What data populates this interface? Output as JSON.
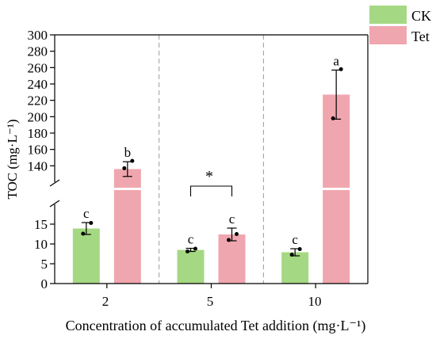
{
  "chart_data": {
    "type": "bar",
    "xlabel": "Concentration of accumulated Tet addition (mg·L⁻¹)",
    "ylabel": "TOC (mg·L⁻¹)",
    "categories": [
      "2",
      "5",
      "10"
    ],
    "axis_break": {
      "lower_range": [
        0,
        20
      ],
      "upper_range": [
        120,
        300
      ]
    },
    "lower_ticks": [
      "0",
      "5",
      "10",
      "15"
    ],
    "upper_ticks": [
      "140",
      "160",
      "180",
      "200",
      "220",
      "240",
      "260",
      "280",
      "300"
    ],
    "legend_position": "top-right",
    "grid": false,
    "category_separators": "dashed",
    "series": [
      {
        "name": "CK",
        "color": "#a5d883",
        "values": [
          13.9,
          8.5,
          7.9
        ],
        "error": [
          1.5,
          0.4,
          0.9
        ],
        "points": [
          [
            12.6,
            15.3
          ],
          [
            8.1,
            8.8
          ],
          [
            7.3,
            8.7
          ]
        ],
        "letters": [
          "c",
          "c",
          "c"
        ]
      },
      {
        "name": "Tet",
        "color": "#f0a6ae",
        "values": [
          136.0,
          12.4,
          227.0
        ],
        "error": [
          9.0,
          1.6,
          30.0
        ],
        "points": [
          [
            137.0,
            146.0
          ],
          [
            11.0,
            12.5
          ],
          [
            198.0,
            258.0
          ]
        ],
        "letters": [
          "b",
          "c",
          "a"
        ]
      }
    ],
    "significance": {
      "label": "*",
      "category": "5"
    }
  }
}
